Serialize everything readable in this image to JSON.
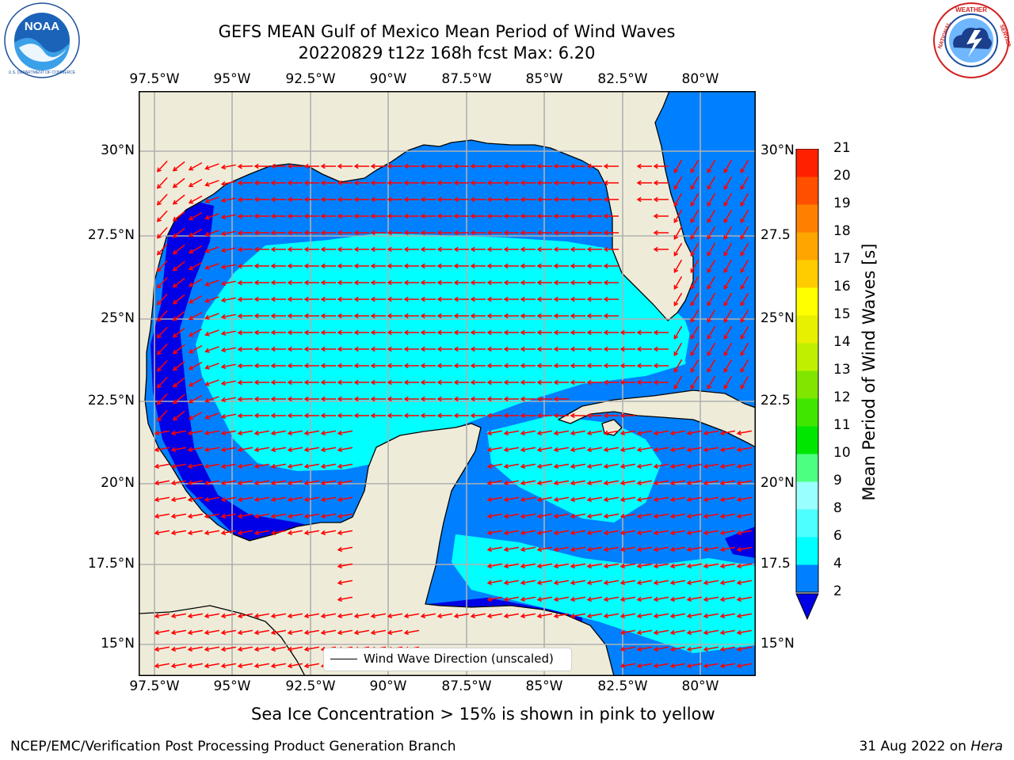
{
  "title": {
    "line1": "GEFS MEAN Gulf of Mexico Mean Period of Wind Waves",
    "line2": "20220829 t12z 168h fcst   Max: 6.20"
  },
  "logos": {
    "left": {
      "name": "NOAA",
      "ring_text": "NATIONAL OCEANIC AND ATMOSPHERIC ADMINISTRATION · U.S. DEPARTMENT OF COMMERCE"
    },
    "right": {
      "name": "NATIONAL WEATHER SERVICE"
    }
  },
  "map": {
    "x_ticks": [
      "97.5°W",
      "95°W",
      "92.5°W",
      "90°W",
      "87.5°W",
      "85°W",
      "82.5°W",
      "80°W"
    ],
    "y_ticks_left": [
      "30°N",
      "27.5°N",
      "25°N",
      "22.5°N",
      "20°N",
      "17.5°N",
      "15°N"
    ],
    "y_ticks_right": [
      "30°N",
      "27.5",
      "25°N",
      "22.5",
      "20°N",
      "17.5",
      "15°N"
    ],
    "colors": {
      "land": "#eeecd9",
      "level_lt2": "#0000e6",
      "level_2_4": "#0080ff",
      "level_4_6": "#00ffff",
      "level_6_8": "#4dffff",
      "arrow": "#ff0000",
      "grid": "#b0b0b0"
    },
    "arrow_direction": "westward, turning southwestward in the western Gulf and Bay of Campeche"
  },
  "legend": {
    "label": "Wind Wave Direction (unscaled)"
  },
  "colorbar": {
    "label": "Mean Period of Wind Waves [s]",
    "ticks": [
      "2",
      "4",
      "6",
      "8",
      "9",
      "10",
      "11",
      "12",
      "13",
      "14",
      "15",
      "16",
      "17",
      "18",
      "19",
      "20",
      "21"
    ],
    "colors": [
      "#0080ff",
      "#00ffff",
      "#4dffff",
      "#99ffff",
      "#4dff80",
      "#00e600",
      "#40e600",
      "#80e600",
      "#c0f000",
      "#e6f000",
      "#ffff00",
      "#ffcc00",
      "#ffa500",
      "#ff8000",
      "#ff5000",
      "#ff2000"
    ],
    "under_color": "#0000e6"
  },
  "note": "Sea Ice Concentration > 15% is shown in pink to yellow",
  "footer": {
    "left": "NCEP/EMC/Verification Post Processing Product Generation Branch",
    "date": "31 Aug 2022 on ",
    "machine": "Hera"
  }
}
